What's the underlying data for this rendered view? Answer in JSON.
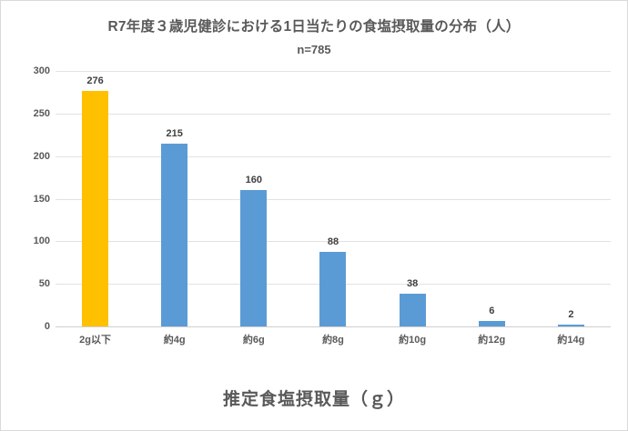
{
  "header": {
    "title": "R7年度３歳児健診における1日当たりの食塩摂取量の分布（人）",
    "subtitle": "n=785"
  },
  "chart_data": {
    "type": "bar",
    "title": "R7年度３歳児健診における1日当たりの食塩摂取量の分布（人）",
    "subtitle": "n=785",
    "categories": [
      "2g以下",
      "約4g",
      "約6g",
      "約8g",
      "約10g",
      "約12g",
      "約14g"
    ],
    "values": [
      276,
      215,
      160,
      88,
      38,
      6,
      2
    ],
    "bar_colors": [
      "#FFC000",
      "#5B9BD5",
      "#5B9BD5",
      "#5B9BD5",
      "#5B9BD5",
      "#5B9BD5",
      "#5B9BD5"
    ],
    "xlabel": "推定食塩摂取量（ｇ）",
    "ylabel": "",
    "ylim": [
      0,
      300
    ],
    "yticks": [
      0,
      50,
      100,
      150,
      200,
      250,
      300
    ],
    "grid": true,
    "legend_position": "none"
  },
  "colors": {
    "highlight_bar": "#FFC000",
    "default_bar": "#5B9BD5",
    "gridline": "#e2e2e2",
    "axis_line": "#cfcfcf",
    "text_gray": "#595959",
    "data_label": "#404040",
    "frame_border": "#d9d9d9",
    "background": "#ffffff"
  }
}
